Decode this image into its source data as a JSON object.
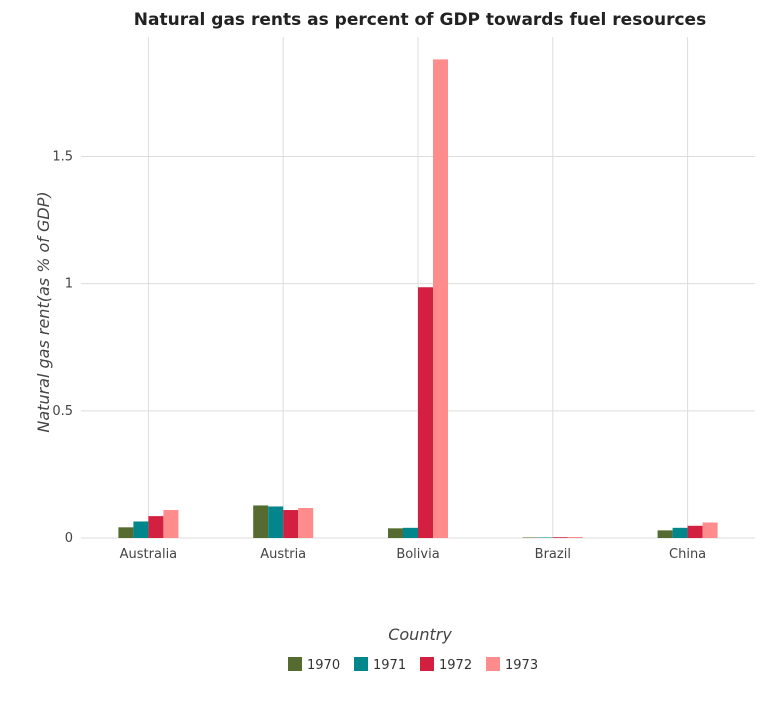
{
  "chart_data": {
    "type": "bar",
    "title": "Natural gas rents as percent of GDP towards fuel resources",
    "xlabel": "Country",
    "ylabel": "Natural gas rent(as % of GDP)",
    "categories": [
      "Australia",
      "Austria",
      "Bolivia",
      "Brazil",
      "China"
    ],
    "series": [
      {
        "name": "1970",
        "color": "#556b2f",
        "values": [
          0.042,
          0.128,
          0.038,
          0.002,
          0.03
        ]
      },
      {
        "name": "1971",
        "color": "#00868b",
        "values": [
          0.065,
          0.124,
          0.04,
          0.002,
          0.04
        ]
      },
      {
        "name": "1972",
        "color": "#d42040",
        "values": [
          0.086,
          0.11,
          0.986,
          0.003,
          0.048
        ]
      },
      {
        "name": "1973",
        "color": "#ff8c8c",
        "values": [
          0.11,
          0.118,
          1.882,
          0.004,
          0.061
        ]
      }
    ],
    "yticks": [
      {
        "value": 0,
        "label": "0"
      },
      {
        "value": 0.5,
        "label": "0.5"
      },
      {
        "value": 1,
        "label": "1"
      },
      {
        "value": 1.5,
        "label": "1.5"
      }
    ],
    "ylim": [
      0,
      1.97
    ],
    "grid": true,
    "legend_position": "bottom-center"
  }
}
